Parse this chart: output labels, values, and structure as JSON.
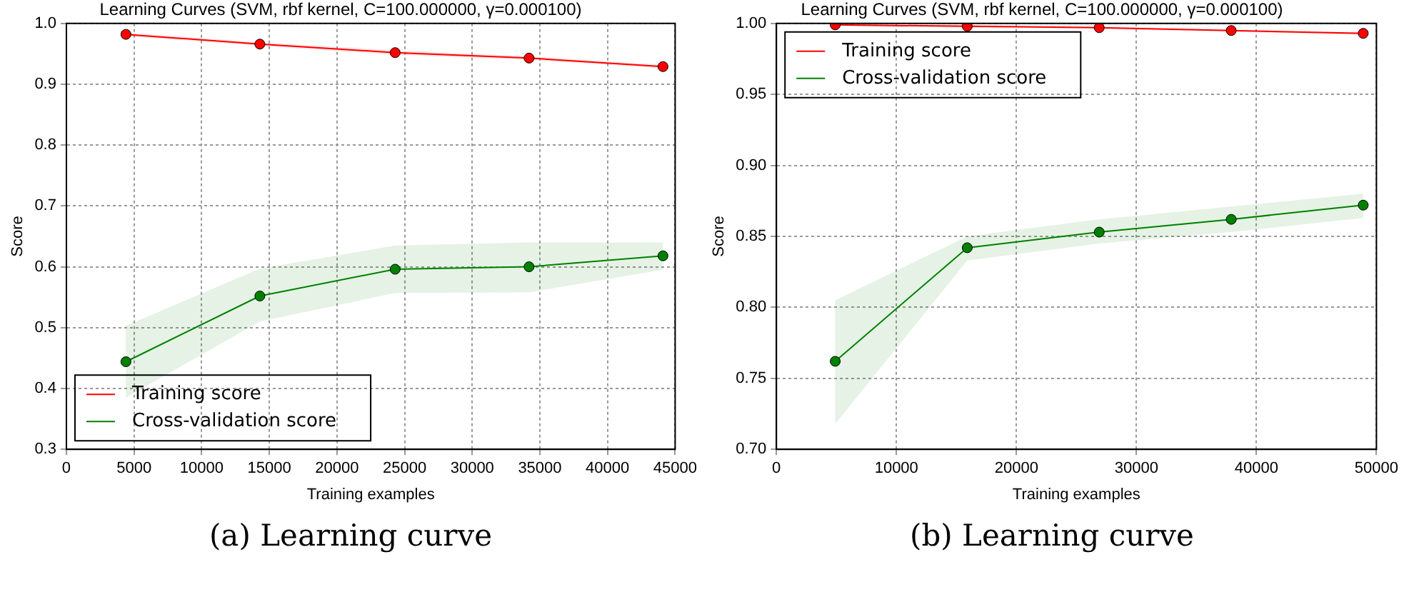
{
  "chart_data": [
    {
      "type": "line",
      "title": "Learning Curves (SVM, rbf kernel, C=100.000000, γ=0.000100)",
      "xlabel": "Training examples",
      "ylabel": "Score",
      "x": [
        4400,
        14300,
        24300,
        34200,
        44100
      ],
      "series": [
        {
          "name": "Training score",
          "color": "#ff0000",
          "values": [
            0.982,
            0.966,
            0.952,
            0.943,
            0.929
          ],
          "lower": [
            0.979,
            0.963,
            0.948,
            0.94,
            0.926
          ],
          "upper": [
            0.985,
            0.969,
            0.956,
            0.946,
            0.932
          ]
        },
        {
          "name": "Cross-validation score",
          "color": "#008000",
          "values": [
            0.444,
            0.552,
            0.596,
            0.6,
            0.618
          ],
          "lower": [
            0.385,
            0.51,
            0.557,
            0.558,
            0.595
          ],
          "upper": [
            0.503,
            0.597,
            0.635,
            0.64,
            0.64
          ]
        }
      ],
      "xlim": [
        0,
        45000
      ],
      "xticks": [
        0,
        5000,
        10000,
        15000,
        20000,
        25000,
        30000,
        35000,
        40000,
        45000
      ],
      "ylim": [
        0.3,
        1.0
      ],
      "yticks": [
        0.3,
        0.4,
        0.5,
        0.6,
        0.7,
        0.8,
        0.9,
        {
          "value": 1.0,
          "label": "1.0"
        }
      ],
      "grid": true,
      "legend": "bottom left",
      "marker": "circle",
      "annotations": [
        "(a) Learning curve"
      ]
    },
    {
      "type": "line",
      "title": "Learning Curves (SVM, rbf kernel, C=100.000000, γ=0.000100)",
      "xlabel": "Training examples",
      "ylabel": "Score",
      "x": [
        4900,
        15900,
        26900,
        37900,
        48900
      ],
      "series": [
        {
          "name": "Training score",
          "color": "#ff0000",
          "values": [
            0.999,
            0.998,
            0.997,
            0.995,
            0.993
          ],
          "lower": [
            0.998,
            0.997,
            0.996,
            0.994,
            0.992
          ],
          "upper": [
            0.999,
            0.999,
            0.997,
            0.995,
            0.994
          ]
        },
        {
          "name": "Cross-validation score",
          "color": "#008000",
          "values": [
            0.762,
            0.842,
            0.853,
            0.862,
            0.872
          ],
          "lower": [
            0.718,
            0.833,
            0.845,
            0.853,
            0.863
          ],
          "upper": [
            0.805,
            0.85,
            0.862,
            0.871,
            0.88
          ]
        }
      ],
      "xlim": [
        0,
        50000
      ],
      "xticks": [
        0,
        10000,
        20000,
        30000,
        40000,
        50000
      ],
      "ylim": [
        0.7,
        1.0
      ],
      "yticks": [
        {
          "value": 0.7,
          "label": "0.70"
        },
        0.75,
        {
          "value": 0.8,
          "label": "0.80"
        },
        0.85,
        {
          "value": 0.9,
          "label": "0.90"
        },
        0.95,
        {
          "value": 1.0,
          "label": "1.00"
        }
      ],
      "grid": true,
      "legend": "top left",
      "marker": "circle",
      "annotations": [
        "(b) Learning curve"
      ]
    }
  ]
}
